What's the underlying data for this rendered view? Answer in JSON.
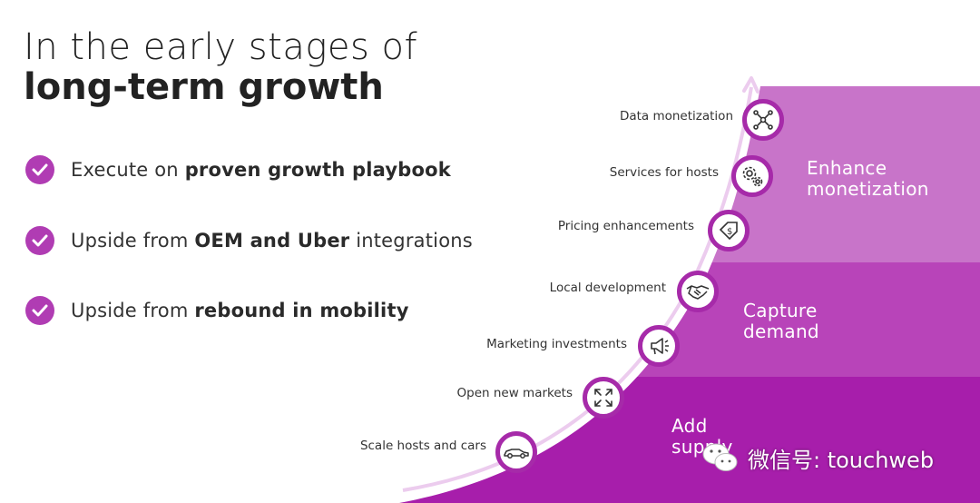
{
  "title": {
    "line1": "In the early stages of",
    "line2": "long-term growth"
  },
  "bullets": [
    {
      "prefix": "Execute on ",
      "bold": "proven growth playbook",
      "suffix": ""
    },
    {
      "prefix": "Upside from ",
      "bold": "OEM and Uber",
      "suffix": " integrations"
    },
    {
      "prefix": "Upside from ",
      "bold": "rebound in mobility",
      "suffix": ""
    }
  ],
  "stages": [
    {
      "line1": "Enhance",
      "line2": "monetization",
      "color": "#c874c9"
    },
    {
      "line1": "Capture",
      "line2": "demand",
      "color": "#b844b9"
    },
    {
      "line1": "Add",
      "line2": "supply",
      "color": "#a71eab"
    }
  ],
  "steps": [
    {
      "label": "Data monetization",
      "icon": "network-icon"
    },
    {
      "label": "Services for hosts",
      "icon": "gears-icon"
    },
    {
      "label": "Pricing enhancements",
      "icon": "price-tag-icon"
    },
    {
      "label": "Local development",
      "icon": "handshake-icon"
    },
    {
      "label": "Marketing investments",
      "icon": "megaphone-icon"
    },
    {
      "label": "Open new markets",
      "icon": "expand-icon"
    },
    {
      "label": "Scale hosts and cars",
      "icon": "car-icon"
    }
  ],
  "colors": {
    "accent": "#a62aa9",
    "check": "#b03cb3",
    "arrow": "#e8c6ea"
  },
  "watermark": {
    "text": "微信号: touchweb"
  }
}
